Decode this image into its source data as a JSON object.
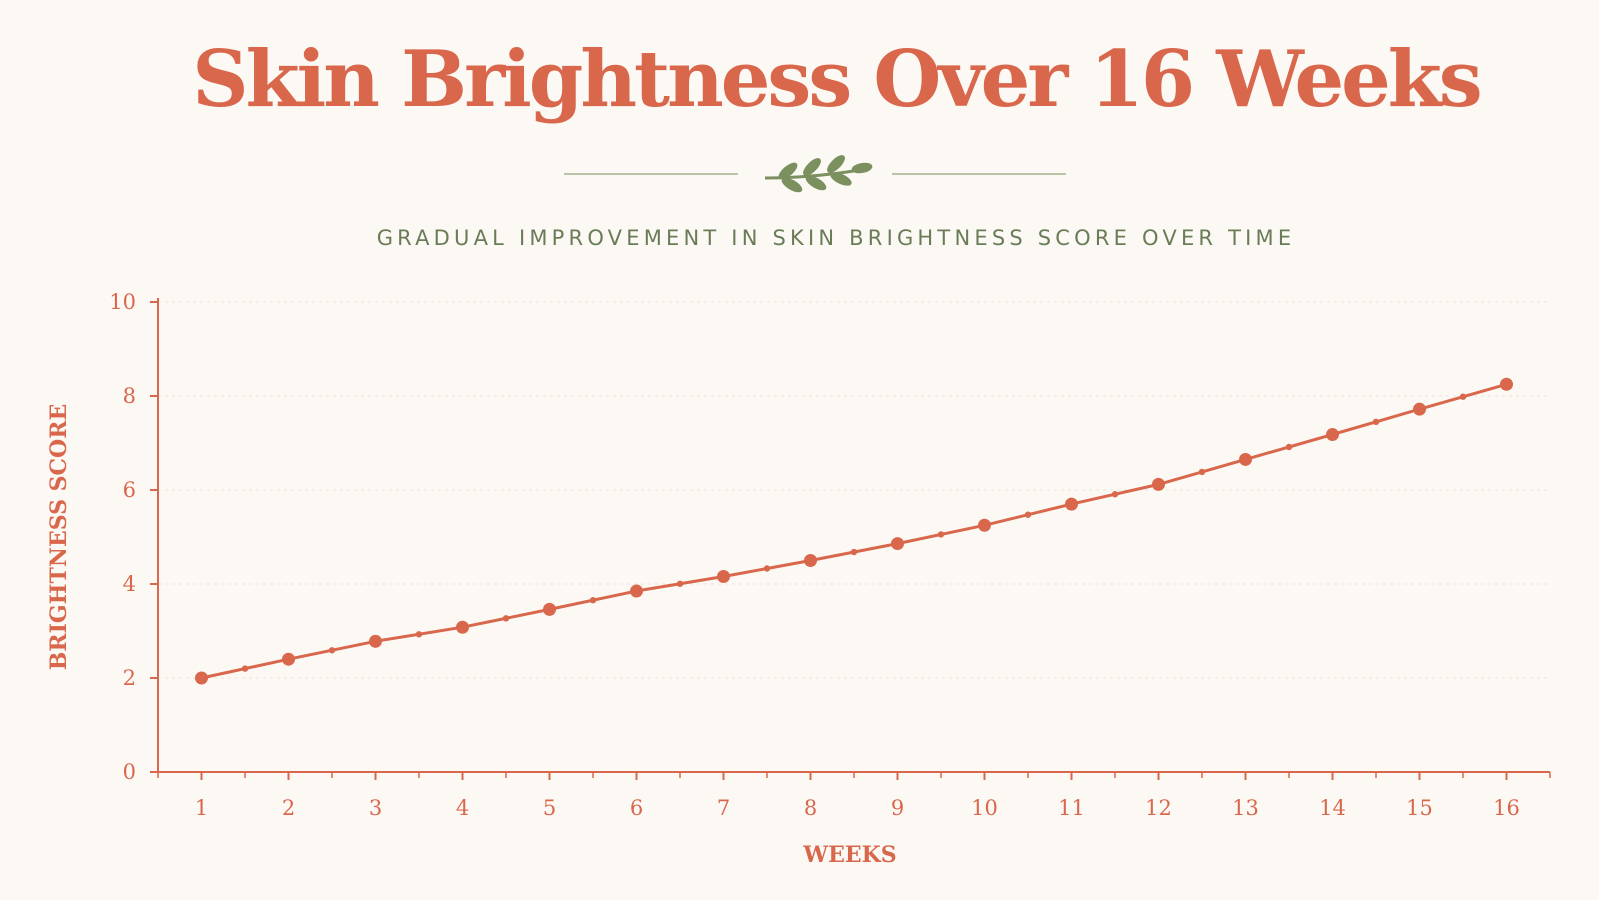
{
  "title": "Skin Brightness Over 16 Weeks",
  "subtitle": "GRADUAL IMPROVEMENT IN SKIN BRIGHTNESS SCORE OVER TIME",
  "icons": {
    "divider": "leaf-sprig-icon"
  },
  "colors": {
    "accent": "#d9674c",
    "leaf": "#7b8f5f",
    "subtitle": "#6a7c57",
    "background": "#fcf9f5",
    "grid": "#ece3da"
  },
  "chart_data": {
    "type": "line",
    "xlabel": "WEEKS",
    "ylabel": "BRIGHTNESS SCORE",
    "x": [
      1,
      2,
      3,
      4,
      5,
      6,
      7,
      8,
      9,
      10,
      11,
      12,
      13,
      14,
      15,
      16
    ],
    "xlim": [
      0.5,
      16.5
    ],
    "ylim": [
      0,
      10
    ],
    "y_ticks": [
      0,
      2,
      4,
      6,
      8,
      10
    ],
    "grid": true,
    "series": [
      {
        "values": [
          2.0,
          2.4,
          2.78,
          3.08,
          3.46,
          3.85,
          4.16,
          4.5,
          4.86,
          5.25,
          5.7,
          6.12,
          6.65,
          7.18,
          7.72,
          8.25
        ]
      }
    ]
  }
}
